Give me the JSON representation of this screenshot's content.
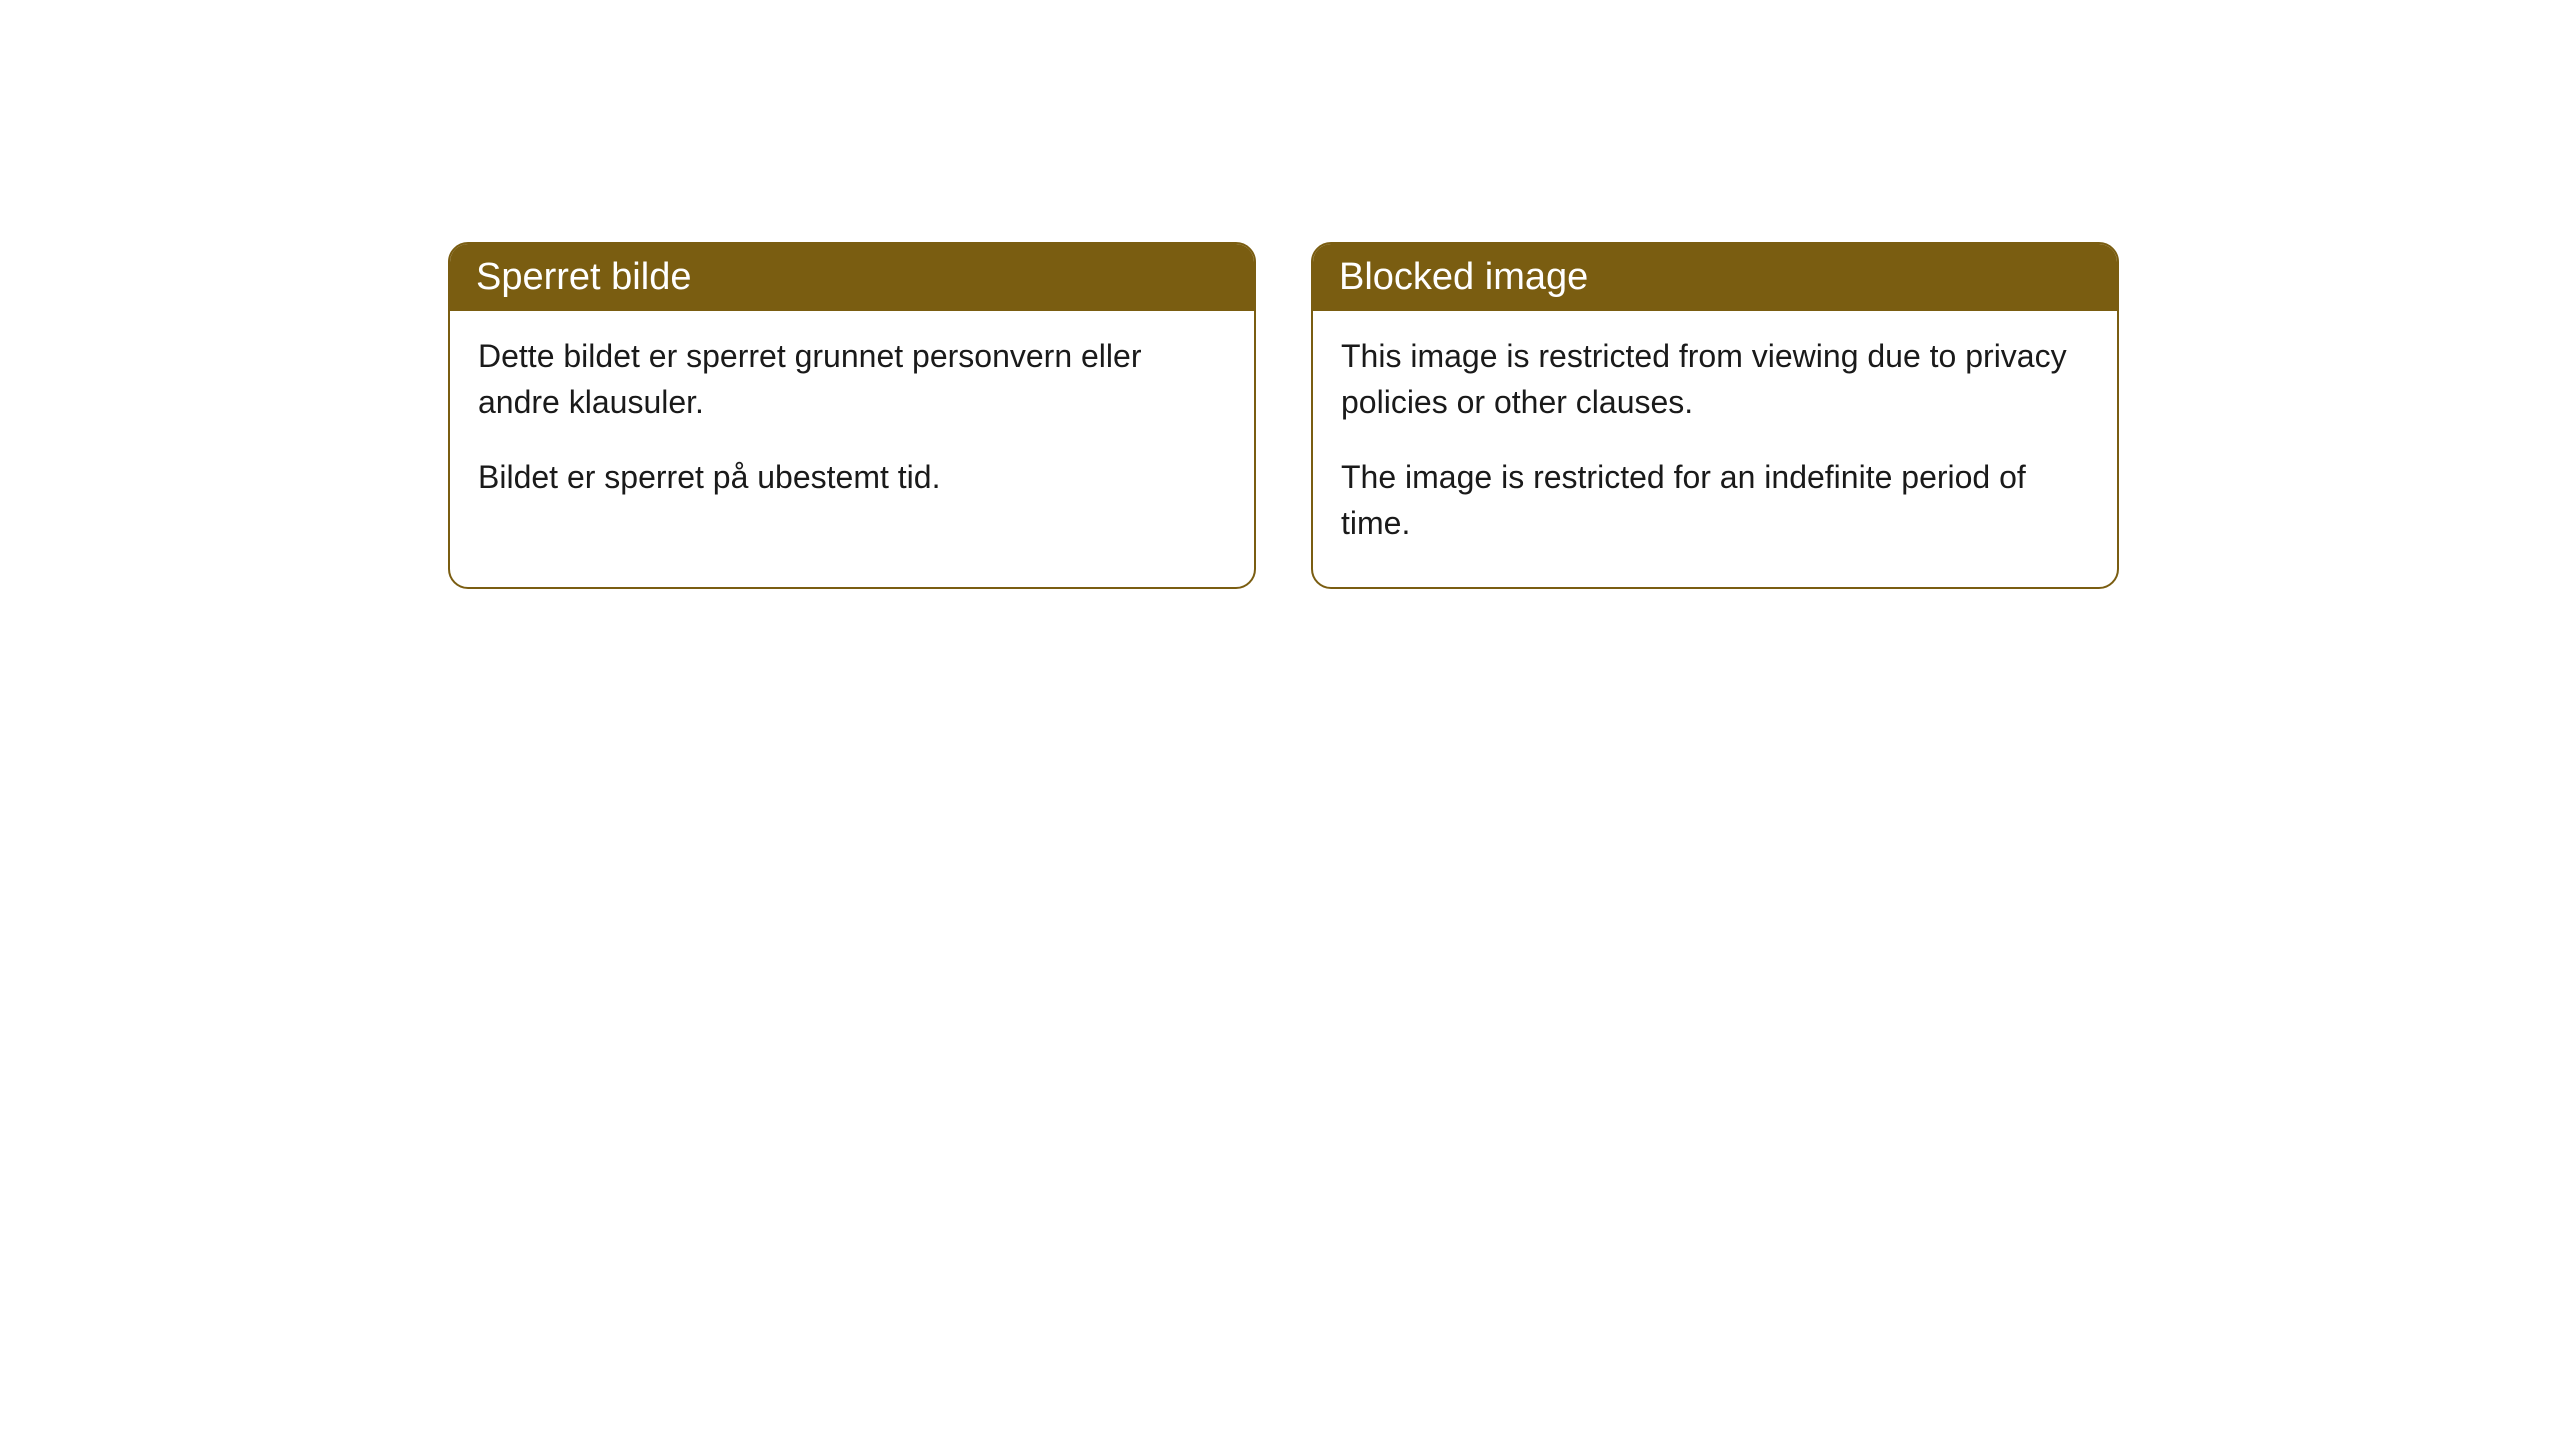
{
  "cards": [
    {
      "title": "Sperret bilde",
      "paragraph1": "Dette bildet er sperret grunnet personvern eller andre klausuler.",
      "paragraph2": "Bildet er sperret på ubestemt tid."
    },
    {
      "title": "Blocked image",
      "paragraph1": "This image is restricted from viewing due to privacy policies or other clauses.",
      "paragraph2": "The image is restricted for an indefinite period of time."
    }
  ],
  "styling": {
    "header_background": "#7a5d11",
    "header_text_color": "#ffffff",
    "border_color": "#7a5d11",
    "body_text_color": "#1a1a1a",
    "card_background": "#ffffff",
    "page_background": "#ffffff",
    "border_radius": 20,
    "header_font_size": 38,
    "body_font_size": 32
  }
}
